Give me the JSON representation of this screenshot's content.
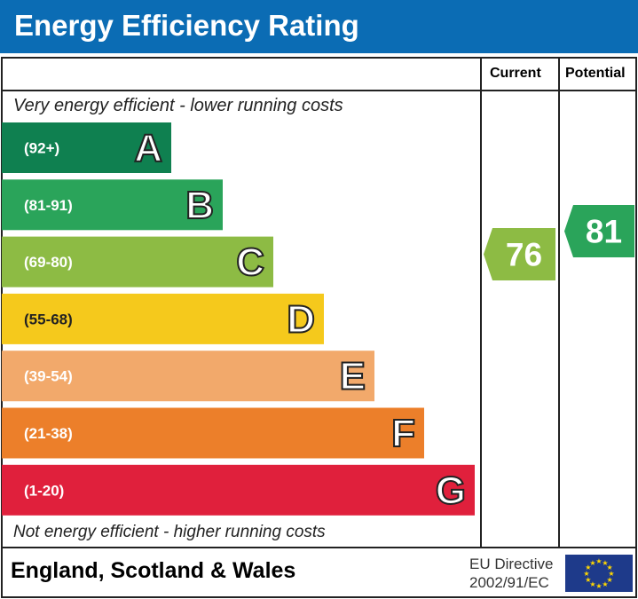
{
  "title": "Energy Efficiency Rating",
  "columns": {
    "current": "Current",
    "potential": "Potential"
  },
  "top_note": "Very energy efficient - lower running costs",
  "bottom_note": "Not energy efficient - higher running costs",
  "footer": {
    "region": "England, Scotland & Wales",
    "directive_line1": "EU Directive",
    "directive_line2": "2002/91/EC",
    "flag": "eu-flag-icon"
  },
  "chart_data": {
    "type": "bar",
    "bands": [
      {
        "letter": "A",
        "range": "(92+)",
        "color": "#0f8050"
      },
      {
        "letter": "B",
        "range": "(81-91)",
        "color": "#2aa45a"
      },
      {
        "letter": "C",
        "range": "(69-80)",
        "color": "#8dbb44"
      },
      {
        "letter": "D",
        "range": "(55-68)",
        "color": "#f5c91c"
      },
      {
        "letter": "E",
        "range": "(39-54)",
        "color": "#f2a96b"
      },
      {
        "letter": "F",
        "range": "(21-38)",
        "color": "#ec7f2a"
      },
      {
        "letter": "G",
        "range": "(1-20)",
        "color": "#e0203c"
      }
    ],
    "current": {
      "value": "76",
      "band": "C",
      "color": "#8dbb44"
    },
    "potential": {
      "value": "81",
      "band": "B",
      "color": "#2aa45a"
    }
  }
}
